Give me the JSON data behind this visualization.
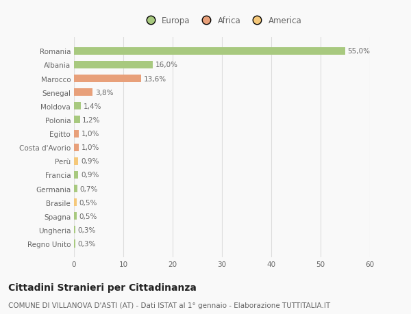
{
  "categories": [
    "Regno Unito",
    "Ungheria",
    "Spagna",
    "Brasile",
    "Germania",
    "Francia",
    "Perù",
    "Costa d'Avorio",
    "Egitto",
    "Polonia",
    "Moldova",
    "Senegal",
    "Marocco",
    "Albania",
    "Romania"
  ],
  "values": [
    0.3,
    0.3,
    0.5,
    0.5,
    0.7,
    0.9,
    0.9,
    1.0,
    1.0,
    1.2,
    1.4,
    3.8,
    13.6,
    16.0,
    55.0
  ],
  "labels": [
    "0,3%",
    "0,3%",
    "0,5%",
    "0,5%",
    "0,7%",
    "0,9%",
    "0,9%",
    "1,0%",
    "1,0%",
    "1,2%",
    "1,4%",
    "3,8%",
    "13,6%",
    "16,0%",
    "55,0%"
  ],
  "colors": [
    "#a8c97f",
    "#a8c97f",
    "#a8c97f",
    "#f5c87a",
    "#a8c97f",
    "#a8c97f",
    "#f5c87a",
    "#e8a07a",
    "#e8a07a",
    "#a8c97f",
    "#a8c97f",
    "#e8a07a",
    "#e8a07a",
    "#a8c97f",
    "#a8c97f"
  ],
  "legend_labels": [
    "Europa",
    "Africa",
    "America"
  ],
  "legend_colors": [
    "#a8c97f",
    "#e8a07a",
    "#f5c87a"
  ],
  "title": "Cittadini Stranieri per Cittadinanza",
  "subtitle": "COMUNE DI VILLANOVA D'ASTI (AT) - Dati ISTAT al 1° gennaio - Elaborazione TUTTITALIA.IT",
  "xlim": [
    0,
    60
  ],
  "xticks": [
    0,
    10,
    20,
    30,
    40,
    50,
    60
  ],
  "background_color": "#f9f9f9",
  "bar_height": 0.55,
  "title_fontsize": 10,
  "subtitle_fontsize": 7.5,
  "label_fontsize": 7.5,
  "tick_fontsize": 7.5,
  "legend_fontsize": 8.5
}
